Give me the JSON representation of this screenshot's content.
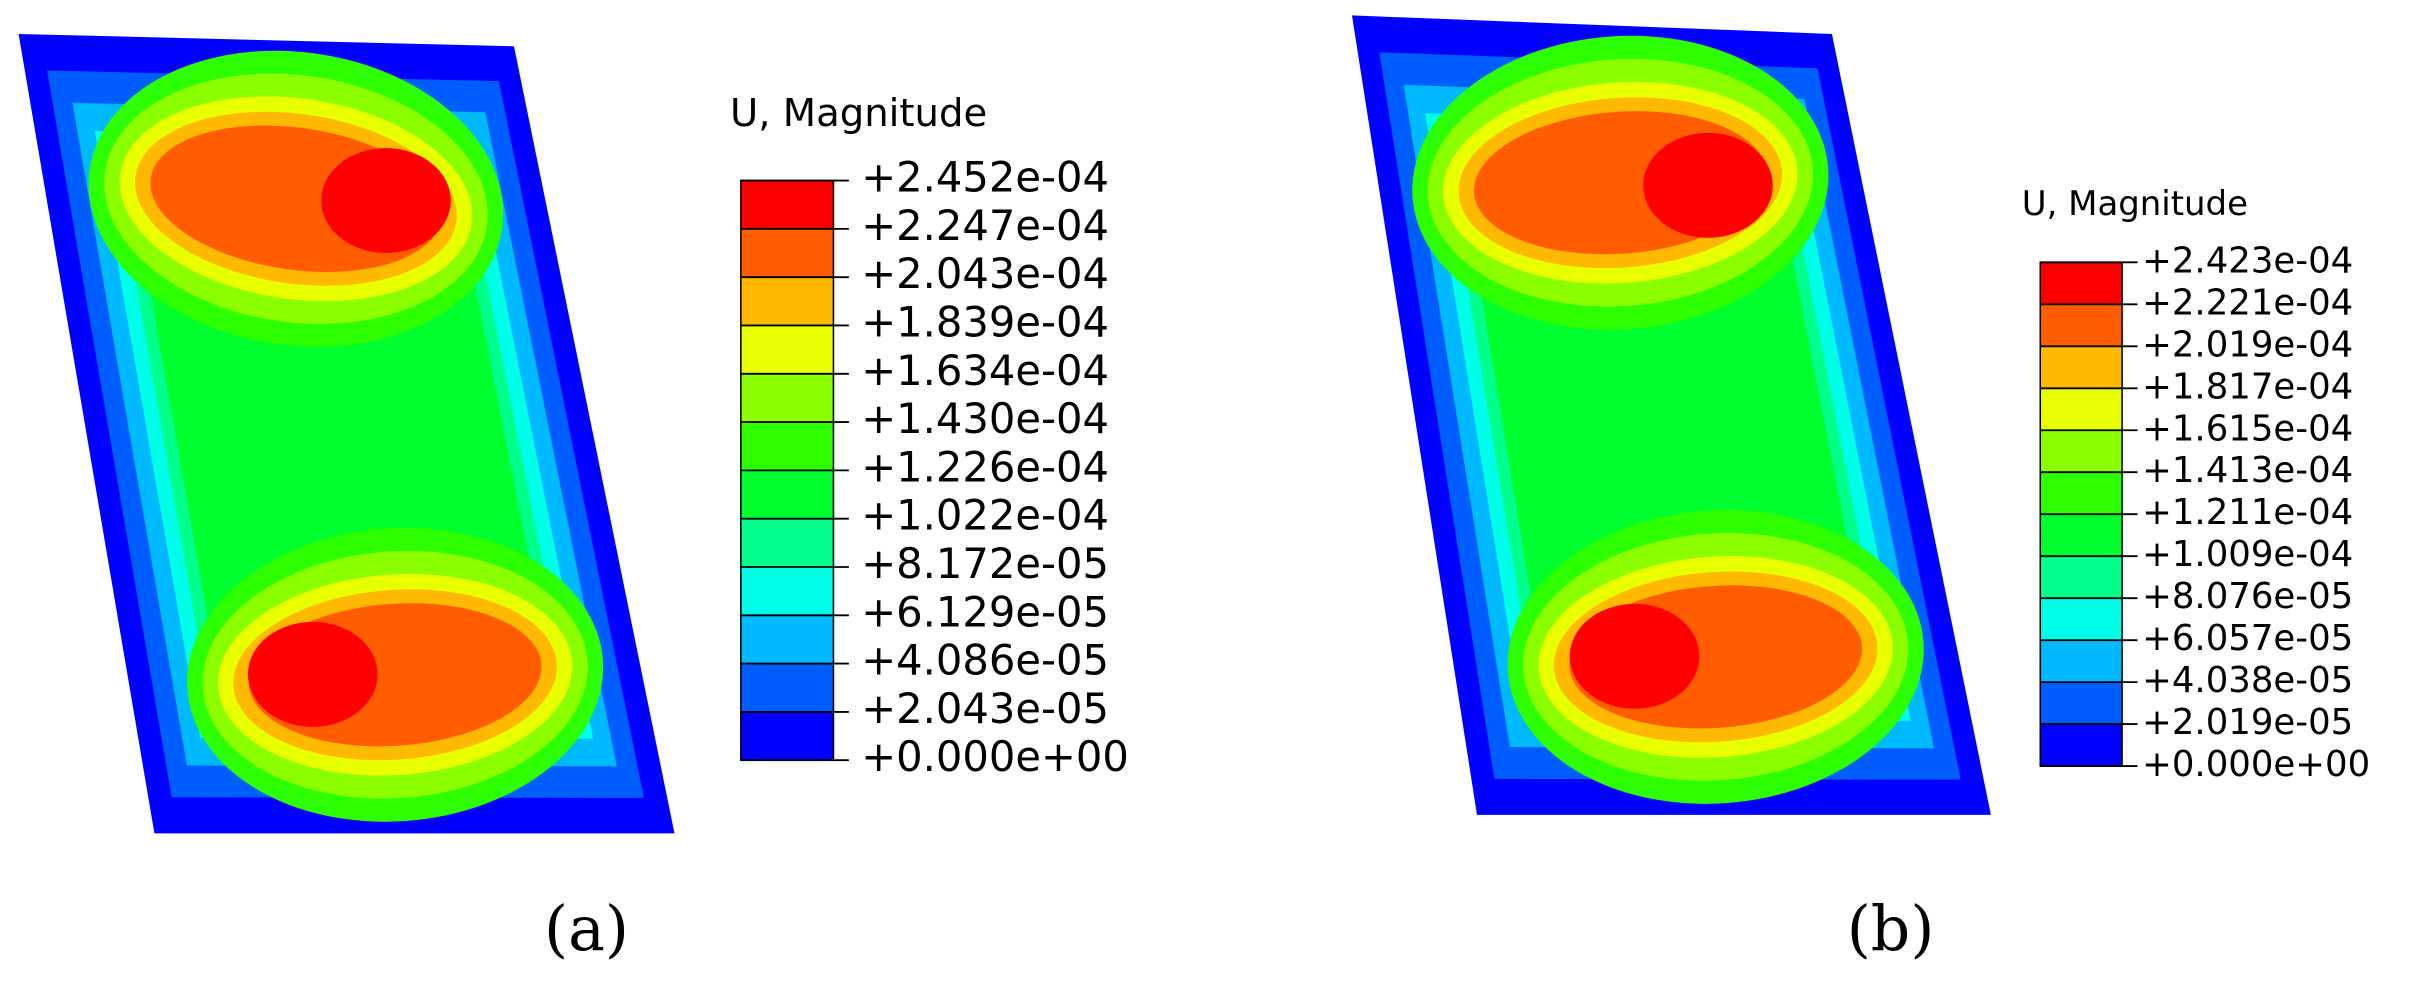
{
  "panels": [
    {
      "legend": {
        "title": "U, Magnitude",
        "labels": [
          "+2.452e-04",
          "+2.247e-04",
          "+2.043e-04",
          "+1.839e-04",
          "+1.634e-04",
          "+1.430e-04",
          "+1.226e-04",
          "+1.022e-04",
          "+8.172e-05",
          "+6.129e-05",
          "+4.086e-05",
          "+2.043e-05",
          "+0.000e+00"
        ]
      },
      "caption": "(a)"
    },
    {
      "legend": {
        "title": "U, Magnitude",
        "labels": [
          "+2.423e-04",
          "+2.221e-04",
          "+2.019e-04",
          "+1.817e-04",
          "+1.615e-04",
          "+1.413e-04",
          "+1.211e-04",
          "+1.009e-04",
          "+8.076e-05",
          "+6.057e-05",
          "+4.038e-05",
          "+2.019e-05",
          "+0.000e+00"
        ]
      },
      "caption": "(b)"
    }
  ]
}
